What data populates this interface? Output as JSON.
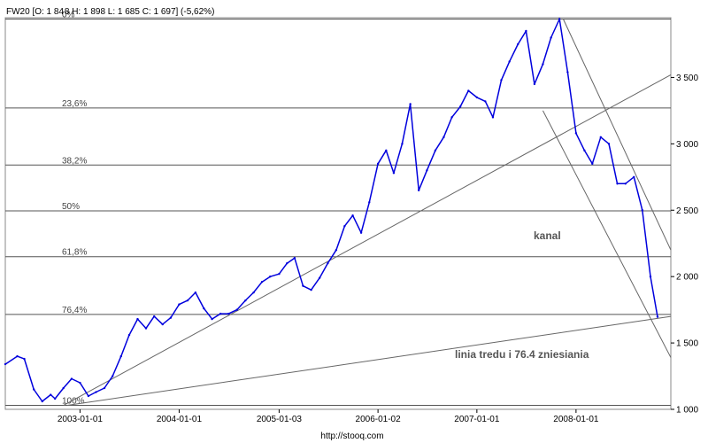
{
  "header": {
    "title": "FW20 [O: 1 84 8  H: 1 898  L: 1 685  C: 1 697] (-5,62%)"
  },
  "footer": {
    "source": "http://stooq.com"
  },
  "chart_data": {
    "type": "line",
    "title": "FW20 [O: 1 84 8  H: 1 898  L: 1 685  C: 1 697] (-5,62%)",
    "x_tick_labels": [
      "2003-01-01",
      "2004-01-01",
      "2005-01-03",
      "2006-01-02",
      "2007-01-01",
      "2008-01-01"
    ],
    "x_ticks": [
      "2003-01-01",
      "2004-01-01",
      "2005-01-03",
      "2006-01-02",
      "2007-01-01",
      "2008-01-01"
    ],
    "xlim": [
      "2002-04-01",
      "2008-12-15"
    ],
    "y_tick_labels": [
      "1 000",
      "1 500",
      "2 000",
      "2 500",
      "3 000",
      "3 500"
    ],
    "y_ticks": [
      1000,
      1500,
      2000,
      2500,
      3000,
      3500
    ],
    "ylim": [
      1000,
      3950
    ],
    "grid": false,
    "fibonacci_levels": [
      {
        "label": "0%",
        "value": 3940
      },
      {
        "label": "23,6%",
        "value": 3270
      },
      {
        "label": "38,2%",
        "value": 2840
      },
      {
        "label": "50%",
        "value": 2495
      },
      {
        "label": "61,8%",
        "value": 2150
      },
      {
        "label": "76,4%",
        "value": 1715
      },
      {
        "label": "100%",
        "value": 1030
      }
    ],
    "annotations": [
      "kanal",
      "linia tredu i 76.4 zniesiania"
    ],
    "trend_lines": [
      {
        "start": {
          "x": "2002-11-01",
          "y": 1030
        },
        "end": {
          "x": "2008-12-15",
          "y": 3520
        }
      },
      {
        "start": {
          "x": "2002-11-15",
          "y": 1030
        },
        "end": {
          "x": "2008-12-15",
          "y": 1700
        }
      },
      {
        "start": {
          "x": "2007-11-15",
          "y": 3940
        },
        "end": {
          "x": "2008-12-15",
          "y": 2200
        }
      },
      {
        "start": {
          "x": "2007-09-01",
          "y": 3250
        },
        "end": {
          "x": "2008-12-15",
          "y": 1390
        }
      }
    ],
    "series": [
      {
        "color": "#0000dd",
        "points": [
          [
            "2002-04-01",
            1340
          ],
          [
            "2002-05-15",
            1400
          ],
          [
            "2002-06-10",
            1380
          ],
          [
            "2002-07-15",
            1150
          ],
          [
            "2002-08-15",
            1060
          ],
          [
            "2002-09-15",
            1110
          ],
          [
            "2002-10-01",
            1080
          ],
          [
            "2002-11-01",
            1160
          ],
          [
            "2002-12-01",
            1230
          ],
          [
            "2003-01-01",
            1200
          ],
          [
            "2003-02-01",
            1100
          ],
          [
            "2003-03-01",
            1130
          ],
          [
            "2003-04-01",
            1160
          ],
          [
            "2003-05-01",
            1250
          ],
          [
            "2003-06-01",
            1400
          ],
          [
            "2003-07-01",
            1560
          ],
          [
            "2003-08-01",
            1680
          ],
          [
            "2003-09-01",
            1610
          ],
          [
            "2003-10-01",
            1700
          ],
          [
            "2003-11-01",
            1640
          ],
          [
            "2003-12-01",
            1690
          ],
          [
            "2004-01-01",
            1790
          ],
          [
            "2004-02-01",
            1820
          ],
          [
            "2004-03-01",
            1880
          ],
          [
            "2004-04-01",
            1760
          ],
          [
            "2004-05-01",
            1680
          ],
          [
            "2004-06-01",
            1720
          ],
          [
            "2004-07-01",
            1720
          ],
          [
            "2004-08-01",
            1750
          ],
          [
            "2004-09-01",
            1820
          ],
          [
            "2004-10-01",
            1880
          ],
          [
            "2004-11-01",
            1960
          ],
          [
            "2004-12-01",
            2000
          ],
          [
            "2005-01-03",
            2020
          ],
          [
            "2005-02-01",
            2100
          ],
          [
            "2005-03-01",
            2140
          ],
          [
            "2005-04-01",
            1930
          ],
          [
            "2005-05-01",
            1900
          ],
          [
            "2005-06-01",
            1990
          ],
          [
            "2005-07-01",
            2100
          ],
          [
            "2005-08-01",
            2200
          ],
          [
            "2005-09-01",
            2380
          ],
          [
            "2005-10-01",
            2460
          ],
          [
            "2005-11-01",
            2330
          ],
          [
            "2005-12-01",
            2560
          ],
          [
            "2006-01-02",
            2850
          ],
          [
            "2006-02-01",
            2950
          ],
          [
            "2006-03-01",
            2780
          ],
          [
            "2006-04-01",
            3000
          ],
          [
            "2006-05-01",
            3300
          ],
          [
            "2006-06-01",
            2650
          ],
          [
            "2006-07-01",
            2800
          ],
          [
            "2006-08-01",
            2950
          ],
          [
            "2006-09-01",
            3050
          ],
          [
            "2006-10-01",
            3200
          ],
          [
            "2006-11-01",
            3280
          ],
          [
            "2006-12-01",
            3400
          ],
          [
            "2007-01-01",
            3350
          ],
          [
            "2007-02-01",
            3320
          ],
          [
            "2007-03-01",
            3200
          ],
          [
            "2007-04-01",
            3480
          ],
          [
            "2007-05-01",
            3620
          ],
          [
            "2007-06-01",
            3750
          ],
          [
            "2007-07-01",
            3850
          ],
          [
            "2007-08-01",
            3450
          ],
          [
            "2007-09-01",
            3600
          ],
          [
            "2007-10-01",
            3800
          ],
          [
            "2007-11-01",
            3940
          ],
          [
            "2007-12-01",
            3540
          ],
          [
            "2008-01-01",
            3080
          ],
          [
            "2008-02-01",
            2950
          ],
          [
            "2008-03-01",
            2850
          ],
          [
            "2008-04-01",
            3050
          ],
          [
            "2008-05-01",
            3000
          ],
          [
            "2008-06-01",
            2700
          ],
          [
            "2008-07-01",
            2700
          ],
          [
            "2008-08-01",
            2750
          ],
          [
            "2008-09-01",
            2500
          ],
          [
            "2008-10-01",
            2000
          ],
          [
            "2008-10-27",
            1697
          ]
        ]
      }
    ]
  }
}
